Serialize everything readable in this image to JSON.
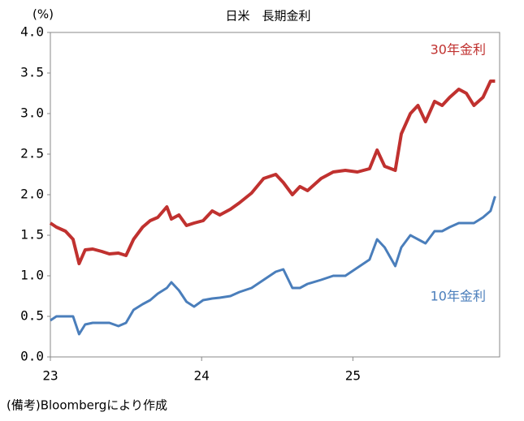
{
  "chart_data": {
    "type": "line",
    "title": "日米　長期金利",
    "y_label": "(%)",
    "note": "(備考)Bloombergにより作成",
    "x": [
      23.0,
      23.04,
      23.1,
      23.15,
      23.19,
      23.23,
      23.28,
      23.34,
      23.39,
      23.45,
      23.5,
      23.55,
      23.61,
      23.66,
      23.71,
      23.77,
      23.8,
      23.85,
      23.9,
      23.95,
      24.01,
      24.07,
      24.12,
      24.19,
      24.25,
      24.33,
      24.41,
      24.49,
      24.54,
      24.6,
      24.65,
      24.7,
      24.79,
      24.87,
      24.95,
      25.03,
      25.11,
      25.16,
      25.21,
      25.28,
      25.32,
      25.38,
      25.43,
      25.48,
      25.54,
      25.59,
      25.64,
      25.7,
      25.75,
      25.8,
      25.86,
      25.91,
      25.94
    ],
    "series": [
      {
        "name": "30年金利",
        "color": "#c0312f",
        "values": [
          1.65,
          1.6,
          1.55,
          1.45,
          1.15,
          1.32,
          1.33,
          1.3,
          1.27,
          1.28,
          1.25,
          1.45,
          1.6,
          1.68,
          1.72,
          1.85,
          1.7,
          1.75,
          1.62,
          1.65,
          1.68,
          1.8,
          1.75,
          1.82,
          1.9,
          2.02,
          2.2,
          2.25,
          2.15,
          2.0,
          2.1,
          2.05,
          2.2,
          2.28,
          2.3,
          2.28,
          2.32,
          2.55,
          2.35,
          2.3,
          2.75,
          3.0,
          3.1,
          2.9,
          3.15,
          3.1,
          3.2,
          3.3,
          3.25,
          3.1,
          3.2,
          3.4,
          3.4
        ]
      },
      {
        "name": "10年金利",
        "color": "#4a7ebb",
        "values": [
          0.45,
          0.5,
          0.5,
          0.5,
          0.28,
          0.4,
          0.42,
          0.42,
          0.42,
          0.38,
          0.42,
          0.58,
          0.65,
          0.7,
          0.78,
          0.85,
          0.92,
          0.82,
          0.68,
          0.62,
          0.7,
          0.72,
          0.73,
          0.75,
          0.8,
          0.85,
          0.95,
          1.05,
          1.08,
          0.85,
          0.85,
          0.9,
          0.95,
          1.0,
          1.0,
          1.1,
          1.2,
          1.45,
          1.35,
          1.12,
          1.35,
          1.5,
          1.45,
          1.4,
          1.55,
          1.55,
          1.6,
          1.65,
          1.65,
          1.65,
          1.72,
          1.8,
          1.98
        ]
      }
    ],
    "xlim": [
      23,
      25.97
    ],
    "xticks": [
      23,
      24,
      25
    ],
    "ylim": [
      0,
      4
    ],
    "yticks": [
      {
        "value": 0,
        "label": "0.0"
      },
      0.5,
      {
        "value": 1,
        "label": "1.0"
      },
      1.5,
      {
        "value": 2,
        "label": "2.0"
      },
      2.5,
      {
        "value": 3,
        "label": "3.0"
      },
      3.5,
      {
        "value": 4,
        "label": "4.0"
      }
    ],
    "grid": false
  }
}
